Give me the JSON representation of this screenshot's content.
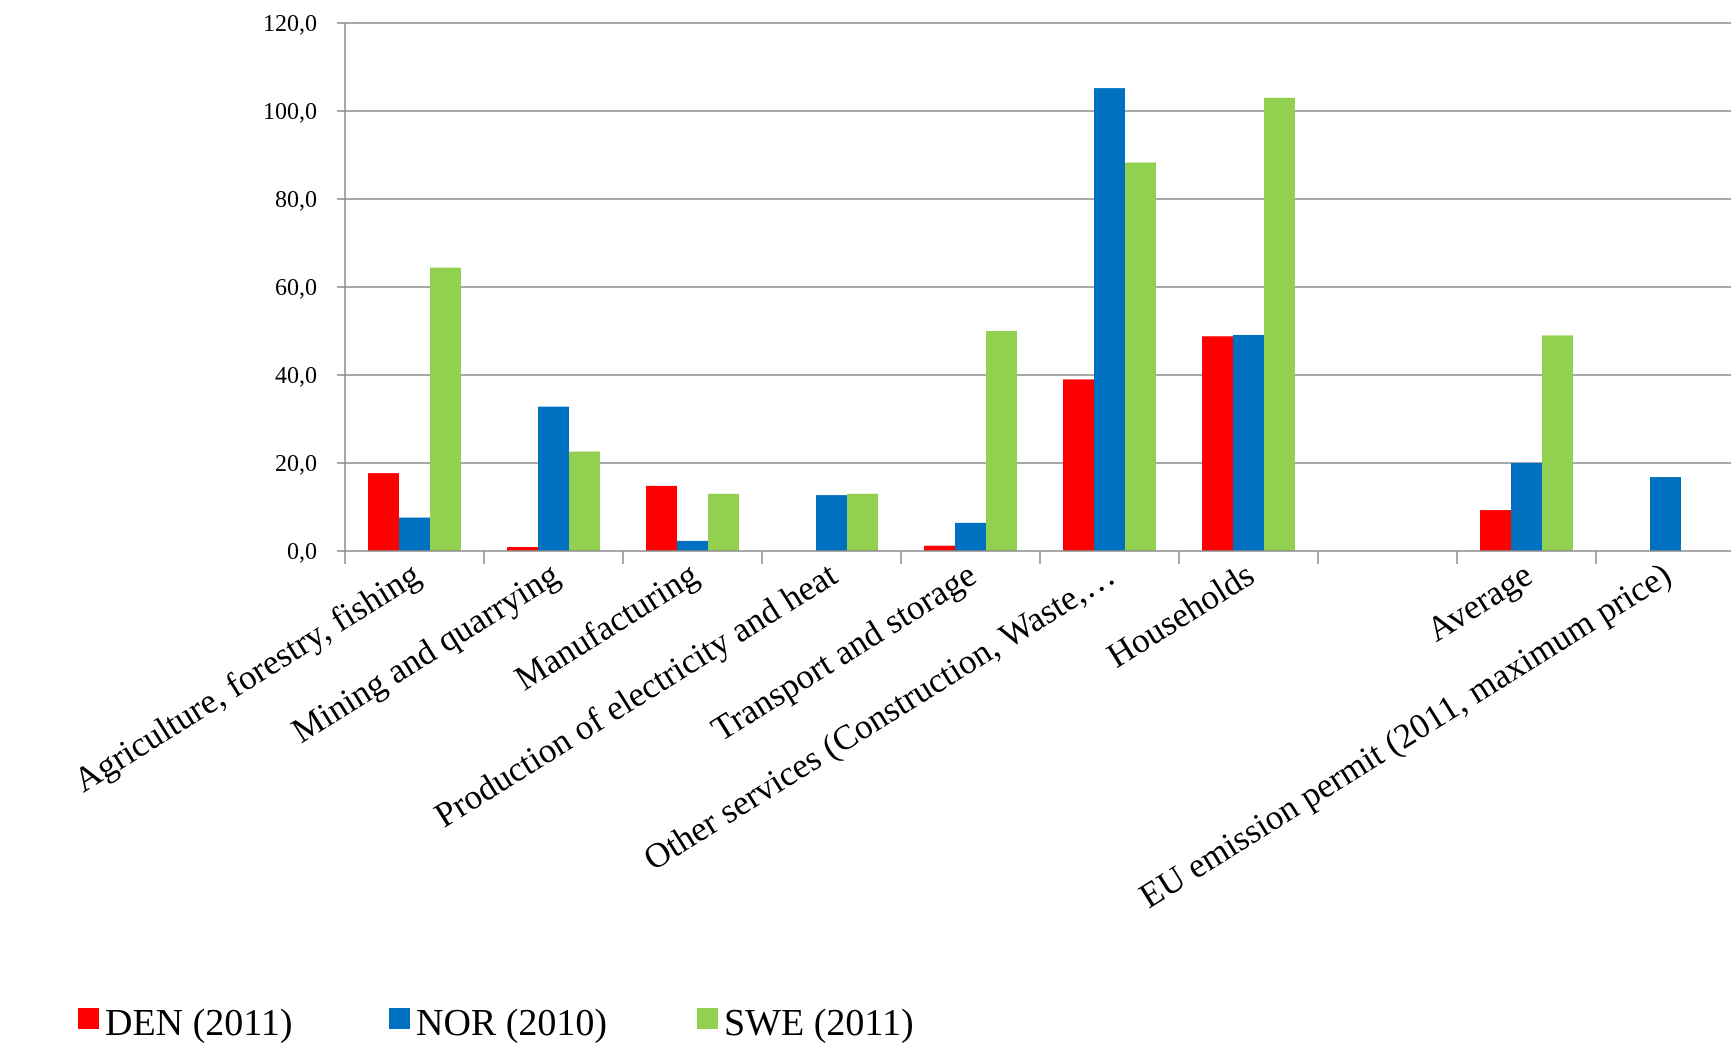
{
  "chart_data": {
    "type": "bar",
    "title": "",
    "xlabel": "",
    "ylabel": "",
    "ylim": [
      0,
      120
    ],
    "yticks": [
      "0,0",
      "20,0",
      "40,0",
      "60,0",
      "80,0",
      "100,0",
      "120,0"
    ],
    "grid": "horizontal",
    "legend_position": "bottom-left",
    "categories": [
      "Agriculture, forestry, fishing",
      "Mining and quarrying",
      "Manufacturing",
      "Production of electricity and heat",
      "Transport and storage",
      "Other services (Construction, Waste,…",
      "Households",
      "",
      "Average",
      "EU emission permit (2011, maximum price)"
    ],
    "series": [
      {
        "name": "DEN (2011)",
        "color": "#ff0000",
        "values": [
          17.7,
          0.9,
          14.8,
          null,
          1.2,
          39.0,
          48.8,
          null,
          9.3,
          null
        ]
      },
      {
        "name": "NOR (2010)",
        "color": "#0070c0",
        "values": [
          7.6,
          32.8,
          2.3,
          12.7,
          6.4,
          105.2,
          49.1,
          null,
          20.0,
          16.8
        ]
      },
      {
        "name": "SWE (2011)",
        "color": "#92d050",
        "values": [
          64.4,
          22.6,
          13.0,
          13.0,
          50.0,
          88.3,
          103.0,
          null,
          49.0,
          null
        ]
      }
    ]
  }
}
